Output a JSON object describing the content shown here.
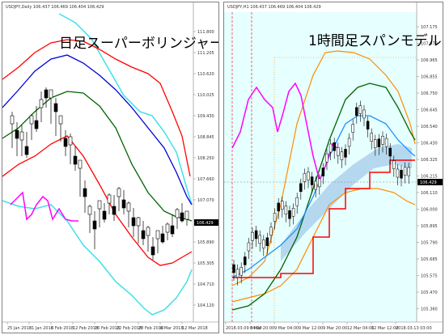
{
  "colors": {
    "upper3": "#40e0e8",
    "upper2": "#ff0000",
    "upper1": "#0000d8",
    "middle": "#006400",
    "chikou": "#ff00ff",
    "cloud": "#5a8fd0",
    "kijun": "#ff0000",
    "tenkan": "#1e90ff",
    "spanB": "#ff8c00",
    "candle": "#000000",
    "right_bg": "#e6ffff"
  },
  "left": {
    "window_title": "USDJPY,Daily  106.437 106.469 106.404 106.429",
    "overlay_label": "日足スーパーボリンジャー",
    "current_price": "106.429",
    "y_ticks": [
      "111.800",
      "111.205",
      "110.620",
      "110.025",
      "109.430",
      "108.845",
      "108.250",
      "107.660",
      "107.070",
      "106.485",
      "105.890",
      "105.305",
      "104.710",
      "104.120"
    ],
    "x_ticks": [
      "25 Jan 2018",
      "31 Jan 2018",
      "6 Feb 2018",
      "12 Feb 2018",
      "16 Feb 2018",
      "22 Feb 2018",
      "28 Feb 2018",
      "6 Mar 2018",
      "12 Mar 2018"
    ]
  },
  "right": {
    "window_title": "USDJPY,H1  106.437 106.469 106.404 106.429",
    "overlay_label": "1時間足スパンモデル",
    "current_price": "106.429",
    "y_ticks": [
      "107.175",
      "107.070",
      "106.965",
      "106.855",
      "106.750",
      "106.645",
      "106.540",
      "106.430",
      "106.325",
      "106.215",
      "106.110",
      "106.000",
      "105.895",
      "105.790",
      "105.685",
      "105.575",
      "105.470",
      "105.360"
    ],
    "x_ticks": [
      "2018.03.09 04:00",
      "8 Mar 20:00",
      "9 Mar 04:00",
      "9 Mar 12:00",
      "9 Mar 20:00",
      "12 Mar 04:00",
      "12 Mar 12:00",
      "2018.03.13 03:00"
    ]
  }
}
